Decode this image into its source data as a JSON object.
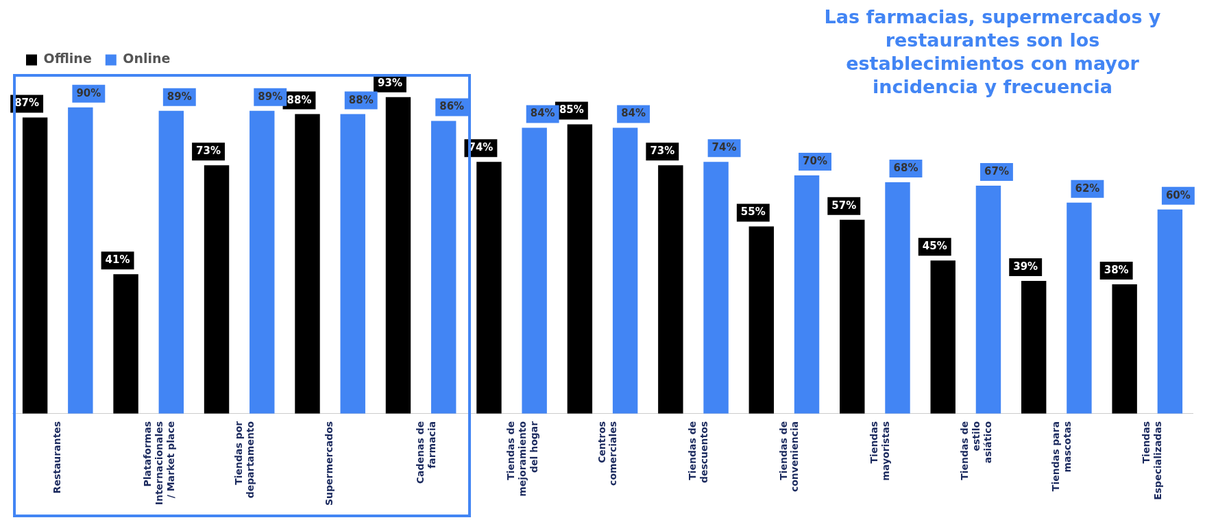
{
  "chart_data": {
    "type": "bar",
    "title": "Las farmacias, supermercados y restaurantes son los establecimientos con mayor incidencia y frecuencia",
    "categories": [
      "Restaurantes",
      "Plataformas Internacionales / Market place",
      "Tiendas por departamento",
      "Supermercados",
      "Cadenas de farmacia",
      "Tiendas de mejoramiento del hogar",
      "Centros comerciales",
      "Tiendas de descuentos",
      "Tiendas de conveniencia",
      "Tiendas mayoristas",
      "Tiendas de estilo asiático",
      "Tiendas para mascotas",
      "Tiendas Especializadas"
    ],
    "series": [
      {
        "name": "Offline",
        "color": "#000000",
        "values": [
          87,
          41,
          73,
          88,
          93,
          74,
          85,
          73,
          55,
          57,
          45,
          39,
          38
        ],
        "value_labels": [
          "87%",
          "41%",
          "73%",
          "88%",
          "93%",
          "74%",
          "85%",
          "73%",
          "55%",
          "57%",
          "45%",
          "39%",
          "38%"
        ]
      },
      {
        "name": "Online",
        "color": "#4285f4",
        "values": [
          90,
          89,
          89,
          88,
          86,
          84,
          84,
          74,
          70,
          68,
          67,
          62,
          60
        ],
        "value_labels": [
          "90%",
          "89%",
          "89%",
          "88%",
          "86%",
          "84%",
          "84%",
          "74%",
          "70%",
          "68%",
          "67%",
          "62%",
          "60%"
        ]
      }
    ],
    "legend": "top",
    "grid": false
  }
}
